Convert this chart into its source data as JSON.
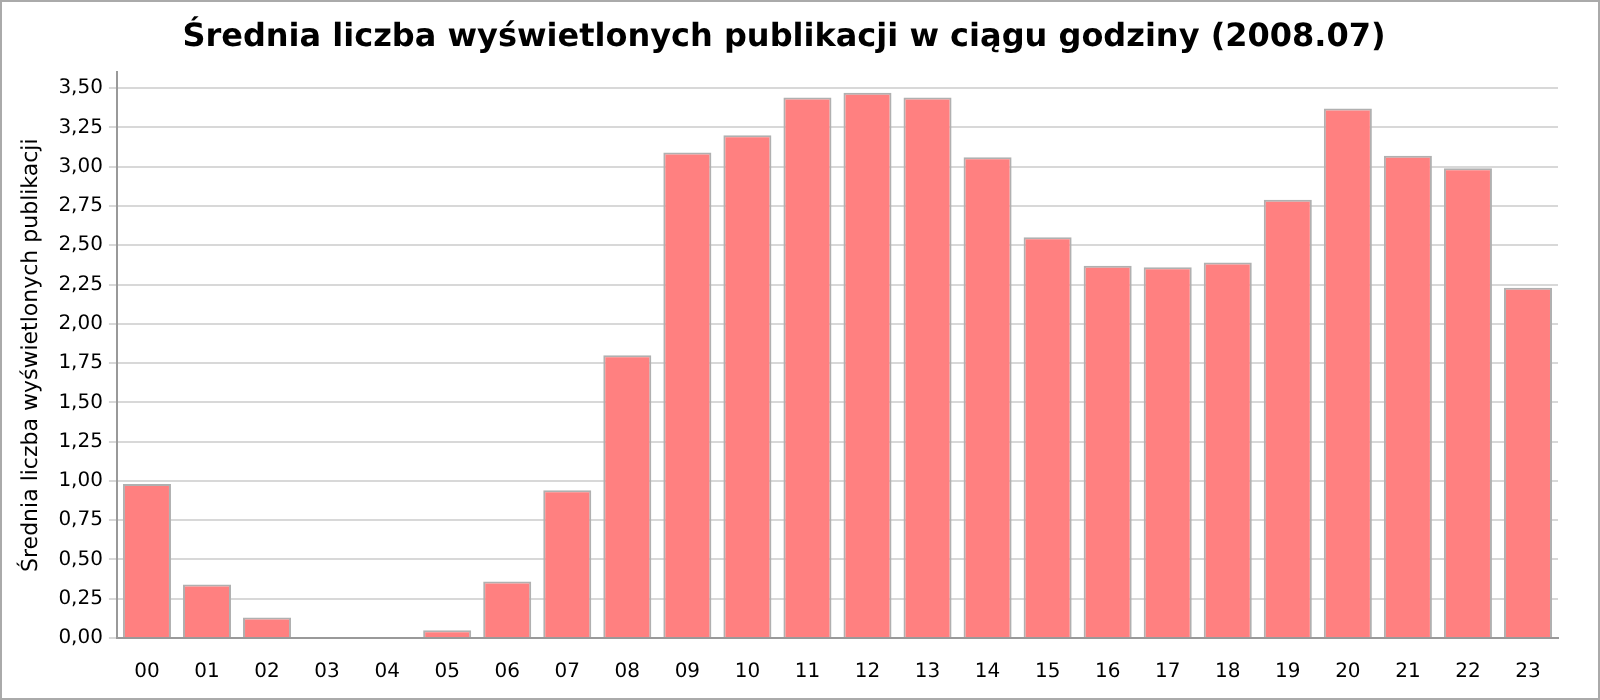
{
  "chart_data": {
    "type": "bar",
    "title": "Średnia liczba wyświetlonych publikacji w ciągu godziny (2008.07)",
    "ylabel": "Średnia liczba wyświetlonych publikacji",
    "categories": [
      "00",
      "01",
      "02",
      "03",
      "04",
      "05",
      "06",
      "07",
      "08",
      "09",
      "10",
      "11",
      "12",
      "13",
      "14",
      "15",
      "16",
      "17",
      "18",
      "19",
      "20",
      "21",
      "22",
      "23"
    ],
    "values": [
      0.98,
      0.34,
      0.13,
      0,
      0,
      0.05,
      0.36,
      0.94,
      1.8,
      3.09,
      3.2,
      3.44,
      3.47,
      3.44,
      3.06,
      2.55,
      2.37,
      2.36,
      2.39,
      2.79,
      3.37,
      3.07,
      2.99,
      2.23
    ],
    "color": "#ff8080",
    "ylim": [
      0,
      3.6
    ],
    "yticks": [
      {
        "value": 0,
        "label": "0,00"
      },
      {
        "value": 0.25,
        "label": "0,25"
      },
      {
        "value": 0.5,
        "label": "0,50"
      },
      {
        "value": 0.75,
        "label": "0,75"
      },
      {
        "value": 1,
        "label": "1,00"
      },
      {
        "value": 1.25,
        "label": "1,25"
      },
      {
        "value": 1.5,
        "label": "1,50"
      },
      {
        "value": 1.75,
        "label": "1,75"
      },
      {
        "value": 2,
        "label": "2,00"
      },
      {
        "value": 2.25,
        "label": "2,25"
      },
      {
        "value": 2.5,
        "label": "2,50"
      },
      {
        "value": 2.75,
        "label": "2,75"
      },
      {
        "value": 3,
        "label": "3,00"
      },
      {
        "value": 3.25,
        "label": "3,25"
      },
      {
        "value": 3.5,
        "label": "3,50"
      }
    ],
    "grid": "y"
  }
}
